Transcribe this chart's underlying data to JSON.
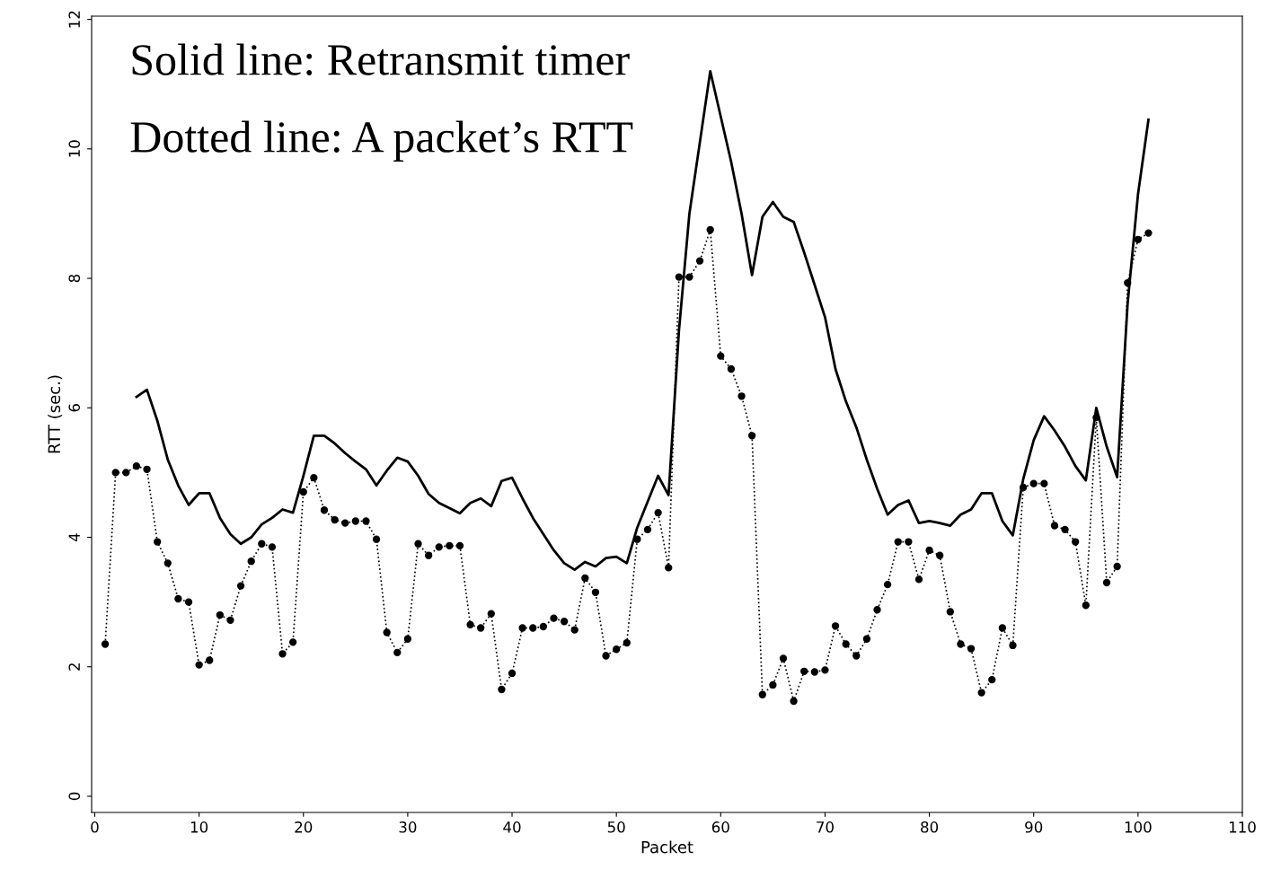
{
  "chart_data": {
    "type": "line",
    "xlabel": "Packet",
    "ylabel": "RTT (sec.)",
    "annotations": [
      "Solid line: Retransmit timer",
      "Dotted line: A packet’s RTT"
    ],
    "xlim": [
      -0.3,
      110
    ],
    "ylim": [
      -0.25,
      12.05
    ],
    "xticks": [
      0,
      10,
      20,
      30,
      40,
      50,
      60,
      70,
      80,
      90,
      100,
      110
    ],
    "yticks": [
      0,
      2,
      4,
      6,
      8,
      10,
      12
    ],
    "grid": false,
    "legend": false,
    "series": [
      {
        "color": "#000000",
        "marker": "none",
        "line_style": "solid",
        "x": [
          4,
          5,
          6,
          7,
          8,
          9,
          10,
          11,
          12,
          13,
          14,
          15,
          16,
          17,
          18,
          19,
          20,
          21,
          22,
          23,
          24,
          25,
          26,
          27,
          28,
          29,
          30,
          31,
          32,
          33,
          34,
          35,
          36,
          37,
          38,
          39,
          40,
          41,
          42,
          43,
          44,
          45,
          46,
          47,
          48,
          49,
          50,
          51,
          52,
          53,
          54,
          55,
          56,
          57,
          58,
          59,
          60,
          61,
          62,
          63,
          64,
          65,
          66,
          67,
          68,
          69,
          70,
          71,
          72,
          73,
          74,
          75,
          76,
          77,
          78,
          79,
          80,
          81,
          82,
          83,
          84,
          85,
          86,
          87,
          88,
          89,
          90,
          91,
          92,
          93,
          94,
          95,
          96,
          97,
          98,
          99,
          100,
          101
        ],
        "values": [
          6.17,
          6.28,
          5.8,
          5.2,
          4.8,
          4.5,
          4.68,
          4.68,
          4.3,
          4.05,
          3.9,
          4.0,
          4.2,
          4.3,
          4.43,
          4.38,
          4.95,
          5.57,
          5.57,
          5.45,
          5.3,
          5.17,
          5.05,
          4.8,
          5.03,
          5.23,
          5.17,
          4.95,
          4.67,
          4.53,
          4.45,
          4.37,
          4.53,
          4.6,
          4.48,
          4.87,
          4.92,
          4.6,
          4.3,
          4.05,
          3.8,
          3.6,
          3.5,
          3.62,
          3.55,
          3.68,
          3.7,
          3.6,
          4.15,
          4.55,
          4.95,
          4.65,
          7.2,
          9.0,
          10.1,
          11.2,
          10.5,
          9.8,
          9.0,
          8.05,
          8.95,
          9.18,
          8.95,
          8.87,
          8.4,
          7.9,
          7.4,
          6.6,
          6.1,
          5.7,
          5.2,
          4.75,
          4.35,
          4.5,
          4.57,
          4.22,
          4.25,
          4.22,
          4.18,
          4.35,
          4.43,
          4.68,
          4.68,
          4.25,
          4.03,
          4.9,
          5.5,
          5.87,
          5.65,
          5.4,
          5.1,
          4.88,
          6.0,
          5.4,
          4.93,
          7.6,
          9.3,
          10.45
        ]
      },
      {
        "color": "#000000",
        "marker": "circle",
        "line_style": "dotted",
        "x": [
          1,
          2,
          3,
          4,
          5,
          6,
          7,
          8,
          9,
          10,
          11,
          12,
          13,
          14,
          15,
          16,
          17,
          18,
          19,
          20,
          21,
          22,
          23,
          24,
          25,
          26,
          27,
          28,
          29,
          30,
          31,
          32,
          33,
          34,
          35,
          36,
          37,
          38,
          39,
          40,
          41,
          42,
          43,
          44,
          45,
          46,
          47,
          48,
          49,
          50,
          51,
          52,
          53,
          54,
          55,
          56,
          57,
          58,
          59,
          60,
          61,
          62,
          63,
          64,
          65,
          66,
          67,
          68,
          69,
          70,
          71,
          72,
          73,
          74,
          75,
          76,
          77,
          78,
          79,
          80,
          81,
          82,
          83,
          84,
          85,
          86,
          87,
          88,
          89,
          90,
          91,
          92,
          93,
          94,
          95,
          96,
          97,
          98,
          99,
          100,
          101
        ],
        "values": [
          2.35,
          5.0,
          5.0,
          5.1,
          5.05,
          3.93,
          3.6,
          3.05,
          3.0,
          2.03,
          2.1,
          2.8,
          2.72,
          3.25,
          3.63,
          3.9,
          3.85,
          2.2,
          2.38,
          4.7,
          4.92,
          4.42,
          4.27,
          4.22,
          4.25,
          4.25,
          3.97,
          2.53,
          2.22,
          2.43,
          3.9,
          3.72,
          3.85,
          3.87,
          3.87,
          2.65,
          2.6,
          2.82,
          1.65,
          1.9,
          2.6,
          2.6,
          2.62,
          2.75,
          2.7,
          2.57,
          3.37,
          3.15,
          2.17,
          2.27,
          2.37,
          3.97,
          4.12,
          4.38,
          3.53,
          8.02,
          8.02,
          8.27,
          8.75,
          6.8,
          6.6,
          6.18,
          5.57,
          1.57,
          1.72,
          2.13,
          1.47,
          1.93,
          1.92,
          1.95,
          2.63,
          2.35,
          2.17,
          2.43,
          2.88,
          3.27,
          3.93,
          3.93,
          3.35,
          3.8,
          3.72,
          2.85,
          2.35,
          2.28,
          1.6,
          1.8,
          2.6,
          2.33,
          4.77,
          4.83,
          4.83,
          4.18,
          4.12,
          3.93,
          2.95,
          5.85,
          3.3,
          3.55,
          7.93,
          8.6,
          8.7
        ]
      }
    ]
  }
}
